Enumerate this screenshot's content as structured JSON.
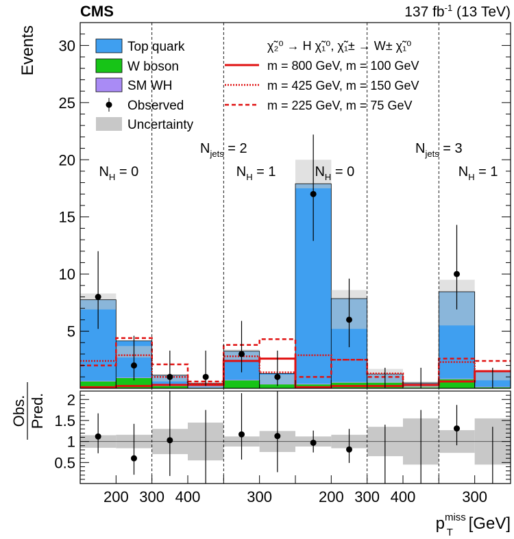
{
  "header": {
    "experiment": "CMS",
    "lumi_prefix": "137 fb",
    "lumi_exp": "-1",
    "lumi_suffix": " (13 TeV)"
  },
  "colors": {
    "top_quark": "#3f9ff0",
    "top_quark_dark": "#2c75c8",
    "w_boson": "#17c417",
    "sm_wh": "#a98bf5",
    "uncertainty": "#c8c8c8",
    "signal": "#e01010"
  },
  "legend": {
    "items": [
      "Top quark",
      "W boson",
      "SM WH",
      "Observed",
      "Uncertainty"
    ],
    "process_line1": "χ̃₂⁰ → H χ̃₁⁰,  χ̃₁± → W± χ̃₁⁰",
    "signals": [
      {
        "style": "solid",
        "label": "m = 800 GeV, m = 100 GeV",
        "m_nlsp": 800,
        "m_lsp": 100
      },
      {
        "style": "dotted",
        "label": "m = 425 GeV, m = 150 GeV",
        "m_nlsp": 425,
        "m_lsp": 150
      },
      {
        "style": "dashed",
        "label": "m = 225 GeV, m = 75 GeV",
        "m_nlsp": 225,
        "m_lsp": 75
      }
    ]
  },
  "regions": [
    {
      "label": "N_jets = 2",
      "sub": "jets",
      "value": "2"
    },
    {
      "label": "N_jets = 3",
      "sub": "jets",
      "value": "3"
    }
  ],
  "subregions": [
    {
      "label": "N_H = 0",
      "sub": "H",
      "value": "0"
    },
    {
      "label": "N_H = 1",
      "sub": "H",
      "value": "1"
    },
    {
      "label": "N_H = 0",
      "sub": "H",
      "value": "0"
    },
    {
      "label": "N_H = 1",
      "sub": "H",
      "value": "1"
    }
  ],
  "chart_data": {
    "type": "bar",
    "stacked": true,
    "ylabel": "Events",
    "xlabel": "p_T^miss [GeV]",
    "ylim": [
      0,
      32
    ],
    "yticks": [
      5,
      10,
      15,
      20,
      25,
      30
    ],
    "xtick_labels": [
      "200",
      "300",
      "400",
      "300",
      "200",
      "300",
      "400",
      "300"
    ],
    "bins": 12,
    "series": [
      {
        "name": "Top quark",
        "values": [
          7.1,
          3.2,
          0.9,
          0.35,
          2.5,
          0.9,
          17.5,
          7.3,
          0.7,
          0.3,
          7.6,
          1.4
        ]
      },
      {
        "name": "W boson",
        "values": [
          0.6,
          0.9,
          0.2,
          0.05,
          0.7,
          0.35,
          0.35,
          0.5,
          0.5,
          0.15,
          0.8,
          0.1
        ]
      },
      {
        "name": "SM WH",
        "values": [
          0.05,
          0.05,
          0.05,
          0.02,
          0.05,
          0.05,
          0.05,
          0.05,
          0.05,
          0.02,
          0.05,
          0.05
        ]
      }
    ],
    "uncertainty_band": [
      [
        6.9,
        8.3
      ],
      [
        2.7,
        3.7
      ],
      [
        0.6,
        1.2
      ],
      [
        0.1,
        0.6
      ],
      [
        2.5,
        3.4
      ],
      [
        0.4,
        1.2
      ],
      [
        17.5,
        20.0
      ],
      [
        5.2,
        8.6
      ],
      [
        0.5,
        1.7
      ],
      [
        0.0,
        0.6
      ],
      [
        5.5,
        9.5
      ],
      [
        0.7,
        1.5
      ]
    ],
    "observed": {
      "values": [
        8,
        2,
        1,
        1,
        3,
        1,
        17,
        6,
        0,
        0,
        10,
        0
      ],
      "err_low": [
        2.8,
        1.3,
        0.8,
        0.8,
        1.6,
        0.8,
        4.1,
        2.4,
        0,
        0,
        3.1,
        0
      ],
      "err_high": [
        4.0,
        2.6,
        2.3,
        2.3,
        2.9,
        2.3,
        5.2,
        3.6,
        1.8,
        1.8,
        4.3,
        1.8
      ]
    },
    "signals": [
      {
        "name": "m = 800 GeV, m = 100 GeV",
        "style": "solid",
        "values": [
          0.1,
          0.2,
          0.3,
          0.3,
          2.4,
          2.6,
          0.1,
          0.2,
          0.2,
          0.3,
          0.6,
          1.5
        ]
      },
      {
        "name": "m = 425 GeV, m = 150 GeV",
        "style": "dotted",
        "values": [
          2.4,
          2.9,
          1.0,
          0.4,
          2.8,
          1.4,
          2.9,
          2.5,
          1.3,
          0.3,
          2.3,
          1.5
        ]
      },
      {
        "name": "m = 225 GeV, m = 75 GeV",
        "style": "dashed",
        "values": [
          2.0,
          4.4,
          2.1,
          0.6,
          3.8,
          4.3,
          1.0,
          2.5,
          1.0,
          0.3,
          2.6,
          2.4
        ]
      }
    ],
    "ratio": {
      "ylabel_num": "Obs.",
      "ylabel_den": "Pred.",
      "ylim": [
        0,
        2.2
      ],
      "yticks": [
        0.5,
        1,
        1.5,
        2
      ],
      "values": [
        1.12,
        0.6,
        1.03,
        null,
        1.17,
        1.13,
        0.97,
        0.81,
        null,
        null,
        1.31,
        null
      ],
      "err_low": [
        0.4,
        0.39,
        0.85,
        0,
        0.6,
        0.86,
        0.23,
        0.32,
        0,
        0,
        0.4,
        0
      ],
      "err_high": [
        0.55,
        0.82,
        2.0,
        1.75,
        0.98,
        2.0,
        0.29,
        0.49,
        1.4,
        1.75,
        0.56,
        1.35
      ],
      "mark_only": [
        false,
        false,
        false,
        true,
        false,
        false,
        false,
        false,
        true,
        true,
        false,
        true
      ],
      "band": [
        [
          0.85,
          1.15
        ],
        [
          0.84,
          1.16
        ],
        [
          0.7,
          1.3
        ],
        [
          0.55,
          1.45
        ],
        [
          0.88,
          1.12
        ],
        [
          0.75,
          1.25
        ],
        [
          0.88,
          1.12
        ],
        [
          0.84,
          1.16
        ],
        [
          0.65,
          1.35
        ],
        [
          0.45,
          1.55
        ],
        [
          0.73,
          1.27
        ],
        [
          0.45,
          1.55
        ]
      ]
    }
  }
}
